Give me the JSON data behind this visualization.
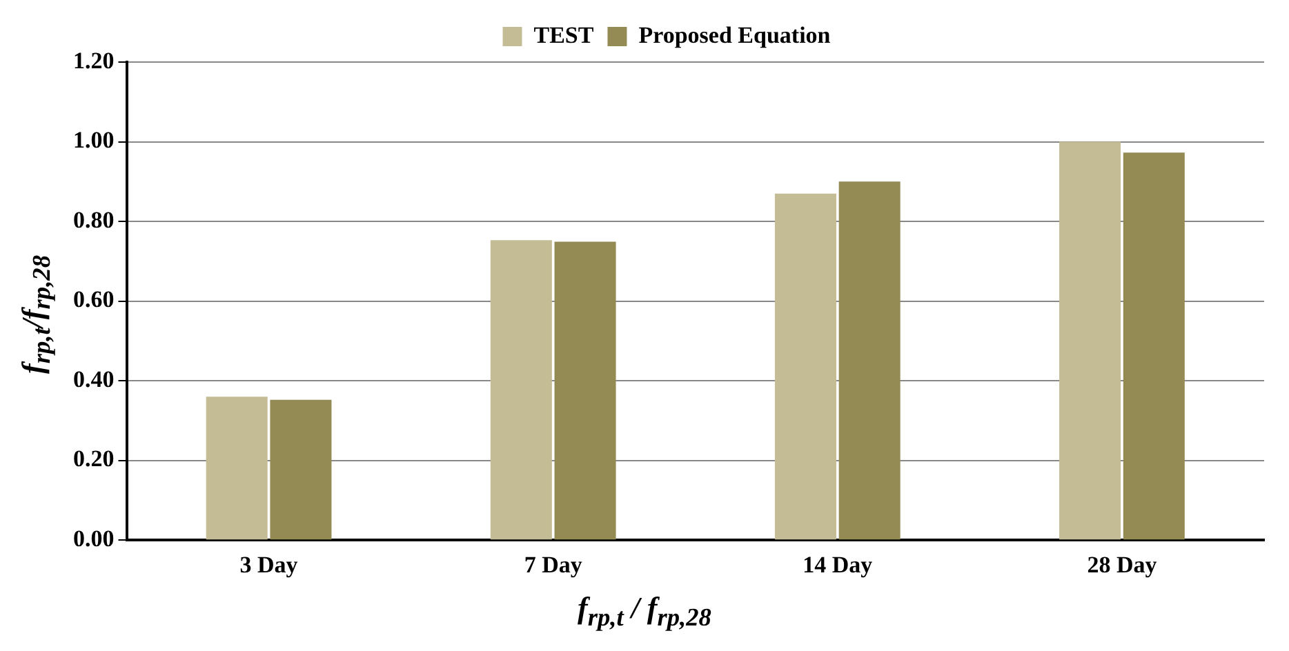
{
  "chart_data": {
    "type": "bar",
    "xlabel": "f$_{rp,t}$ / f$_{rp,28}$",
    "ylabel": "f$_{rp,t}$/f$_{rp,28}$",
    "categories": [
      "3 Day",
      "7 Day",
      "14 Day",
      "28 Day"
    ],
    "series": [
      {
        "name": "TEST",
        "color": "#c4bc95",
        "values": [
          0.36,
          0.753,
          0.87,
          1.0
        ]
      },
      {
        "name": "Proposed Equation",
        "color": "#948a54",
        "values": [
          0.352,
          0.749,
          0.9,
          0.973
        ]
      }
    ],
    "ylim": [
      0,
      1.2
    ],
    "yticks": [
      {
        "value": 0,
        "label": "0.00"
      },
      {
        "value": 0.2,
        "label": "0.20"
      },
      {
        "value": 0.4,
        "label": "0.40"
      },
      {
        "value": 0.6,
        "label": "0.60"
      },
      {
        "value": 0.8,
        "label": "0.80"
      },
      {
        "value": 1.0,
        "label": "1.00"
      },
      {
        "value": 1.2,
        "label": "1.20"
      }
    ],
    "grid": "y",
    "legend": "top"
  }
}
